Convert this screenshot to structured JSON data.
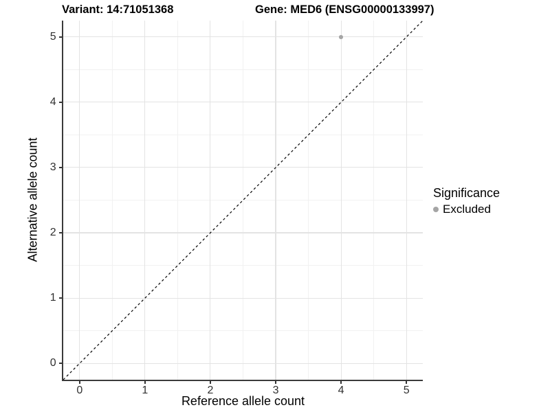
{
  "title": {
    "variant": "Variant: 14:71051368",
    "gene": "Gene: MED6 (ENSG00000133997)"
  },
  "chart_data": {
    "type": "scatter",
    "title": "Variant: 14:71051368   Gene: MED6 (ENSG00000133997)",
    "xlabel": "Reference allele count",
    "ylabel": "Alternative allele count",
    "xlim": [
      -0.25,
      5.25
    ],
    "ylim": [
      -0.25,
      5.25
    ],
    "x_ticks": [
      0,
      1,
      2,
      3,
      4,
      5
    ],
    "y_ticks": [
      0,
      1,
      2,
      3,
      4,
      5
    ],
    "grid": "white background, light gray major gridlines at integers, lighter minor gridlines at halves",
    "legend": {
      "title": "Significance",
      "position": "right",
      "entries": [
        {
          "label": "Excluded",
          "color": "#a5a5a5"
        }
      ]
    },
    "series": [
      {
        "name": "Excluded",
        "color": "#a5a5a5",
        "marker": "circle",
        "points": [
          {
            "x": 4,
            "y": 5
          }
        ]
      }
    ],
    "reference_line": {
      "type": "identity y=x",
      "style": "dashed",
      "color": "#000000",
      "from": [
        -0.25,
        -0.25
      ],
      "to": [
        5.25,
        5.25
      ]
    }
  },
  "colors": {
    "background": "#ffffff",
    "grid_major": "#e3e3e3",
    "grid_minor": "#f1f1f1",
    "axis_line": "#3a3a3a",
    "tick_mark": "#333333",
    "tick_text": "#303030",
    "title_text": "#000000",
    "point": "#a5a5a5",
    "dashed_line": "#000000"
  }
}
